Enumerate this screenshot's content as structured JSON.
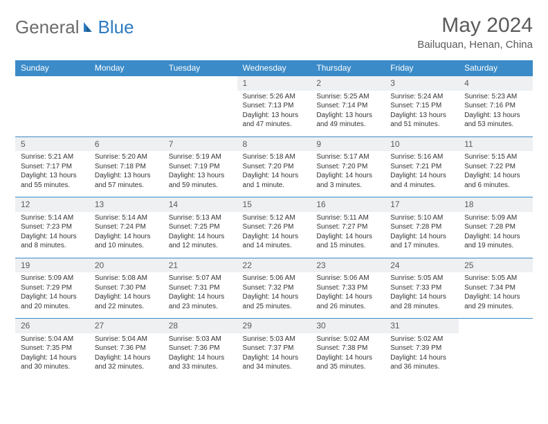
{
  "logo": {
    "part1": "General",
    "part2": "Blue"
  },
  "title": "May 2024",
  "location": "Bailuquan, Henan, China",
  "dayHeaders": [
    "Sunday",
    "Monday",
    "Tuesday",
    "Wednesday",
    "Thursday",
    "Friday",
    "Saturday"
  ],
  "colors": {
    "headerBg": "#3b8bc8",
    "headerText": "#ffffff",
    "dayNumBg": "#eef0f2",
    "borderColor": "#3b8bc8",
    "titleColor": "#5a5a5a",
    "logoBlue": "#2d7bc0",
    "logoGray": "#6b6b6b"
  },
  "weeks": [
    [
      null,
      null,
      null,
      {
        "d": "1",
        "sr": "Sunrise: 5:26 AM",
        "ss": "Sunset: 7:13 PM",
        "dl1": "Daylight: 13 hours",
        "dl2": "and 47 minutes."
      },
      {
        "d": "2",
        "sr": "Sunrise: 5:25 AM",
        "ss": "Sunset: 7:14 PM",
        "dl1": "Daylight: 13 hours",
        "dl2": "and 49 minutes."
      },
      {
        "d": "3",
        "sr": "Sunrise: 5:24 AM",
        "ss": "Sunset: 7:15 PM",
        "dl1": "Daylight: 13 hours",
        "dl2": "and 51 minutes."
      },
      {
        "d": "4",
        "sr": "Sunrise: 5:23 AM",
        "ss": "Sunset: 7:16 PM",
        "dl1": "Daylight: 13 hours",
        "dl2": "and 53 minutes."
      }
    ],
    [
      {
        "d": "5",
        "sr": "Sunrise: 5:21 AM",
        "ss": "Sunset: 7:17 PM",
        "dl1": "Daylight: 13 hours",
        "dl2": "and 55 minutes."
      },
      {
        "d": "6",
        "sr": "Sunrise: 5:20 AM",
        "ss": "Sunset: 7:18 PM",
        "dl1": "Daylight: 13 hours",
        "dl2": "and 57 minutes."
      },
      {
        "d": "7",
        "sr": "Sunrise: 5:19 AM",
        "ss": "Sunset: 7:19 PM",
        "dl1": "Daylight: 13 hours",
        "dl2": "and 59 minutes."
      },
      {
        "d": "8",
        "sr": "Sunrise: 5:18 AM",
        "ss": "Sunset: 7:20 PM",
        "dl1": "Daylight: 14 hours",
        "dl2": "and 1 minute."
      },
      {
        "d": "9",
        "sr": "Sunrise: 5:17 AM",
        "ss": "Sunset: 7:20 PM",
        "dl1": "Daylight: 14 hours",
        "dl2": "and 3 minutes."
      },
      {
        "d": "10",
        "sr": "Sunrise: 5:16 AM",
        "ss": "Sunset: 7:21 PM",
        "dl1": "Daylight: 14 hours",
        "dl2": "and 4 minutes."
      },
      {
        "d": "11",
        "sr": "Sunrise: 5:15 AM",
        "ss": "Sunset: 7:22 PM",
        "dl1": "Daylight: 14 hours",
        "dl2": "and 6 minutes."
      }
    ],
    [
      {
        "d": "12",
        "sr": "Sunrise: 5:14 AM",
        "ss": "Sunset: 7:23 PM",
        "dl1": "Daylight: 14 hours",
        "dl2": "and 8 minutes."
      },
      {
        "d": "13",
        "sr": "Sunrise: 5:14 AM",
        "ss": "Sunset: 7:24 PM",
        "dl1": "Daylight: 14 hours",
        "dl2": "and 10 minutes."
      },
      {
        "d": "14",
        "sr": "Sunrise: 5:13 AM",
        "ss": "Sunset: 7:25 PM",
        "dl1": "Daylight: 14 hours",
        "dl2": "and 12 minutes."
      },
      {
        "d": "15",
        "sr": "Sunrise: 5:12 AM",
        "ss": "Sunset: 7:26 PM",
        "dl1": "Daylight: 14 hours",
        "dl2": "and 14 minutes."
      },
      {
        "d": "16",
        "sr": "Sunrise: 5:11 AM",
        "ss": "Sunset: 7:27 PM",
        "dl1": "Daylight: 14 hours",
        "dl2": "and 15 minutes."
      },
      {
        "d": "17",
        "sr": "Sunrise: 5:10 AM",
        "ss": "Sunset: 7:28 PM",
        "dl1": "Daylight: 14 hours",
        "dl2": "and 17 minutes."
      },
      {
        "d": "18",
        "sr": "Sunrise: 5:09 AM",
        "ss": "Sunset: 7:28 PM",
        "dl1": "Daylight: 14 hours",
        "dl2": "and 19 minutes."
      }
    ],
    [
      {
        "d": "19",
        "sr": "Sunrise: 5:09 AM",
        "ss": "Sunset: 7:29 PM",
        "dl1": "Daylight: 14 hours",
        "dl2": "and 20 minutes."
      },
      {
        "d": "20",
        "sr": "Sunrise: 5:08 AM",
        "ss": "Sunset: 7:30 PM",
        "dl1": "Daylight: 14 hours",
        "dl2": "and 22 minutes."
      },
      {
        "d": "21",
        "sr": "Sunrise: 5:07 AM",
        "ss": "Sunset: 7:31 PM",
        "dl1": "Daylight: 14 hours",
        "dl2": "and 23 minutes."
      },
      {
        "d": "22",
        "sr": "Sunrise: 5:06 AM",
        "ss": "Sunset: 7:32 PM",
        "dl1": "Daylight: 14 hours",
        "dl2": "and 25 minutes."
      },
      {
        "d": "23",
        "sr": "Sunrise: 5:06 AM",
        "ss": "Sunset: 7:33 PM",
        "dl1": "Daylight: 14 hours",
        "dl2": "and 26 minutes."
      },
      {
        "d": "24",
        "sr": "Sunrise: 5:05 AM",
        "ss": "Sunset: 7:33 PM",
        "dl1": "Daylight: 14 hours",
        "dl2": "and 28 minutes."
      },
      {
        "d": "25",
        "sr": "Sunrise: 5:05 AM",
        "ss": "Sunset: 7:34 PM",
        "dl1": "Daylight: 14 hours",
        "dl2": "and 29 minutes."
      }
    ],
    [
      {
        "d": "26",
        "sr": "Sunrise: 5:04 AM",
        "ss": "Sunset: 7:35 PM",
        "dl1": "Daylight: 14 hours",
        "dl2": "and 30 minutes."
      },
      {
        "d": "27",
        "sr": "Sunrise: 5:04 AM",
        "ss": "Sunset: 7:36 PM",
        "dl1": "Daylight: 14 hours",
        "dl2": "and 32 minutes."
      },
      {
        "d": "28",
        "sr": "Sunrise: 5:03 AM",
        "ss": "Sunset: 7:36 PM",
        "dl1": "Daylight: 14 hours",
        "dl2": "and 33 minutes."
      },
      {
        "d": "29",
        "sr": "Sunrise: 5:03 AM",
        "ss": "Sunset: 7:37 PM",
        "dl1": "Daylight: 14 hours",
        "dl2": "and 34 minutes."
      },
      {
        "d": "30",
        "sr": "Sunrise: 5:02 AM",
        "ss": "Sunset: 7:38 PM",
        "dl1": "Daylight: 14 hours",
        "dl2": "and 35 minutes."
      },
      {
        "d": "31",
        "sr": "Sunrise: 5:02 AM",
        "ss": "Sunset: 7:39 PM",
        "dl1": "Daylight: 14 hours",
        "dl2": "and 36 minutes."
      },
      null
    ]
  ]
}
